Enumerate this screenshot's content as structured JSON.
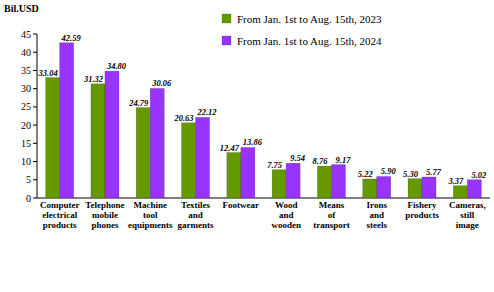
{
  "chart_data": {
    "type": "bar",
    "ylabel": "Bil.USD",
    "categories": [
      "Computer electrical products",
      "Telephone mobile phones",
      "Machine tool equipments",
      "Textiles and garments",
      "Footwear",
      "Wood and wooden",
      "Means of transport",
      "Irons and steels",
      "Fishery products",
      "Cameras, still image"
    ],
    "series": [
      {
        "name": "From Jan. 1st to Aug. 15th, 2023",
        "color": "#669900",
        "values": [
          33.04,
          31.32,
          24.79,
          20.63,
          12.47,
          7.75,
          8.76,
          5.22,
          5.3,
          3.37
        ],
        "value_labels": [
          "33.04",
          "31.32",
          "24.79",
          "20.63",
          "12.47",
          "7.75",
          "8.76",
          "5.22",
          "5.30",
          "3.37"
        ]
      },
      {
        "name": "From Jan. 1st to Aug. 15th, 2024",
        "color": "#9933ff",
        "values": [
          42.59,
          34.8,
          30.06,
          22.12,
          13.86,
          9.54,
          9.17,
          5.9,
          5.77,
          5.02
        ],
        "value_labels": [
          "42.59",
          "34.80",
          "30.06",
          "22.12",
          "13.86",
          "9.54",
          "9.17",
          "5.90",
          "5.77",
          "5.02"
        ]
      }
    ],
    "ylim": [
      0,
      45
    ],
    "yticks": [
      0,
      5,
      10,
      15,
      20,
      25,
      30,
      35,
      40,
      45
    ],
    "grid": false,
    "legend": "top-right",
    "data_labels": true
  }
}
